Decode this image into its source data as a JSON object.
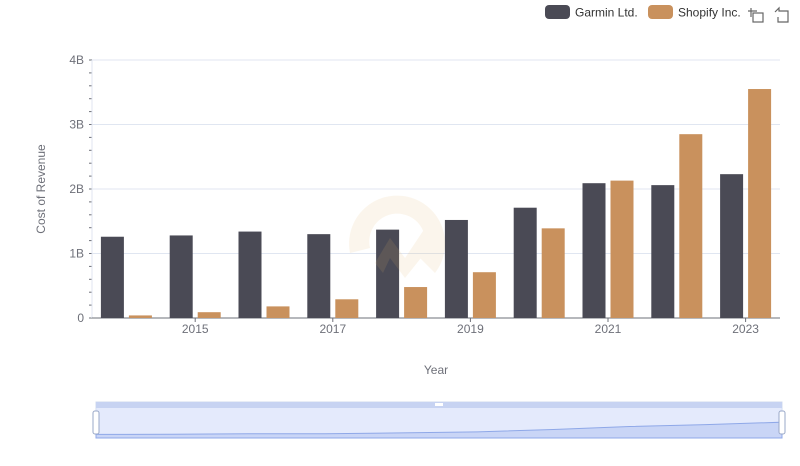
{
  "chart_data": {
    "type": "bar",
    "title": "",
    "xlabel": "Year",
    "ylabel": "Cost of Revenue",
    "categories": [
      "2014",
      "2015",
      "2016",
      "2017",
      "2018",
      "2019",
      "2020",
      "2021",
      "2022",
      "2023"
    ],
    "x_tick_labels": [
      "2015",
      "2017",
      "2019",
      "2021",
      "2023"
    ],
    "y_ticks": [
      {
        "value": 0,
        "label": "0"
      },
      {
        "value": 1000000000,
        "label": "1B"
      },
      {
        "value": 2000000000,
        "label": "2B"
      },
      {
        "value": 3000000000,
        "label": "3B"
      },
      {
        "value": 4000000000,
        "label": "4B"
      }
    ],
    "ylim": [
      0,
      4000000000
    ],
    "grid": true,
    "legend_position": "top-right",
    "series": [
      {
        "name": "Garmin Ltd.",
        "color": "#4a4a55",
        "values": [
          1260000000,
          1280000000,
          1340000000,
          1300000000,
          1370000000,
          1520000000,
          1710000000,
          2090000000,
          2060000000,
          2230000000
        ]
      },
      {
        "name": "Shopify Inc.",
        "color": "#c9915d",
        "values": [
          40000000,
          90000000,
          180000000,
          290000000,
          480000000,
          710000000,
          1390000000,
          2130000000,
          2850000000,
          3550000000
        ]
      }
    ]
  },
  "toolbox": {
    "zoom_icon": "zoom-icon",
    "restore_icon": "restore-icon"
  },
  "data_zoom": {
    "range_start_percent": 0,
    "range_end_percent": 100,
    "fill_color": "#d6e0fb"
  }
}
